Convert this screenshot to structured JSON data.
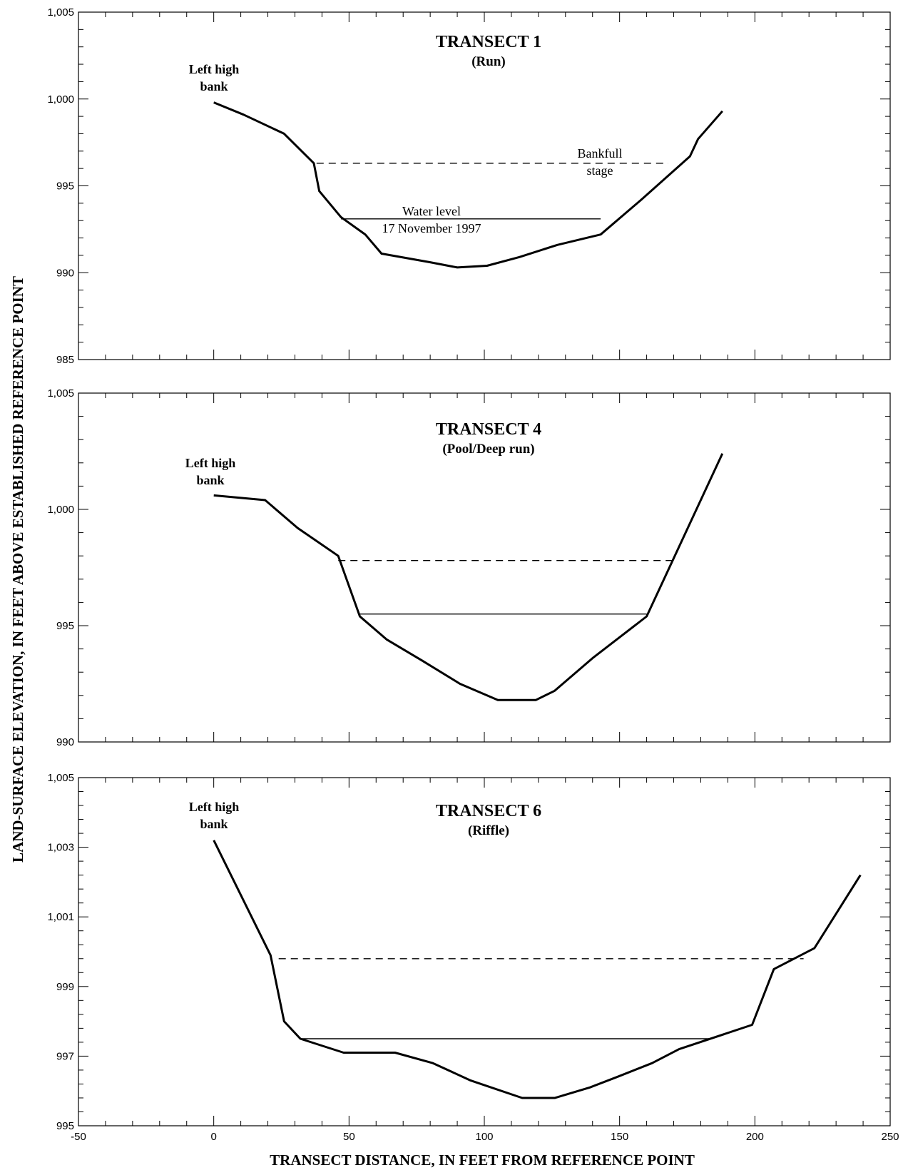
{
  "y_axis_label": "LAND-SURFACE ELEVATION, IN FEET ABOVE ESTABLISHED REFERENCE POINT",
  "x_axis_label": "TRANSECT DISTANCE, IN FEET FROM REFERENCE POINT",
  "chart_data": [
    {
      "type": "line",
      "title": "TRANSECT 1",
      "subtitle": "(Run)",
      "xlim": [
        -50,
        250
      ],
      "ylim": [
        985,
        1005
      ],
      "x_ticks": [
        -50,
        0,
        50,
        100,
        150,
        200,
        250
      ],
      "y_ticks": [
        985,
        990,
        995,
        1000,
        1005
      ],
      "y_tick_labels": [
        "985",
        "990",
        "995",
        "1,000",
        "1,005"
      ],
      "series": [
        {
          "role": "profile",
          "x": [
            0,
            11,
            26,
            37,
            39,
            47,
            56,
            62,
            80,
            90,
            101,
            113,
            127,
            143,
            158,
            176,
            179,
            188
          ],
          "y": [
            999.8,
            999.1,
            998.0,
            996.3,
            994.7,
            993.2,
            992.2,
            991.1,
            990.6,
            990.3,
            990.4,
            990.9,
            991.6,
            992.2,
            994.2,
            996.7,
            997.7,
            999.3
          ]
        },
        {
          "role": "bankfull",
          "x": [
            38,
            168
          ],
          "y": [
            996.3,
            996.3
          ]
        },
        {
          "role": "water-level",
          "x": [
            47,
            143
          ],
          "y": [
            993.1,
            993.1
          ]
        }
      ],
      "annotations": {
        "left_bank": [
          "Left high",
          "bank"
        ],
        "bankfull": [
          "Bankfull",
          "stage"
        ],
        "water_level": [
          "Water level",
          "17 November 1997"
        ]
      }
    },
    {
      "type": "line",
      "title": "TRANSECT 4",
      "subtitle": "(Pool/Deep run)",
      "xlim": [
        -50,
        250
      ],
      "ylim": [
        990,
        1005
      ],
      "x_ticks": [
        -50,
        0,
        50,
        100,
        150,
        200,
        250
      ],
      "y_ticks": [
        990,
        995,
        1000,
        1005
      ],
      "y_tick_labels": [
        "990",
        "995",
        "1,000",
        "1,005"
      ],
      "series": [
        {
          "role": "profile",
          "x": [
            0,
            19,
            31,
            46,
            54,
            64,
            77,
            91,
            105,
            119,
            126,
            140,
            160,
            188
          ],
          "y": [
            1000.6,
            1000.4,
            999.2,
            998.0,
            995.4,
            994.4,
            993.5,
            992.5,
            991.8,
            991.8,
            992.2,
            993.6,
            995.4,
            1002.4
          ]
        },
        {
          "role": "bankfull",
          "x": [
            46,
            170
          ],
          "y": [
            997.8,
            997.8
          ]
        },
        {
          "role": "water-level",
          "x": [
            54,
            160
          ],
          "y": [
            995.5,
            995.5
          ]
        }
      ],
      "annotations": {
        "left_bank": [
          "Left high",
          "bank"
        ]
      }
    },
    {
      "type": "line",
      "title": "TRANSECT 6",
      "subtitle": "(Riffle)",
      "xlim": [
        -50,
        250
      ],
      "ylim": [
        995,
        1005
      ],
      "x_ticks": [
        -50,
        0,
        50,
        100,
        150,
        200,
        250
      ],
      "x_tick_labels": [
        "-50",
        "0",
        "50",
        "100",
        "150",
        "200",
        "250"
      ],
      "y_ticks": [
        995,
        997,
        999,
        1001,
        1003,
        1005
      ],
      "y_tick_labels": [
        "995",
        "997",
        "999",
        "1,001",
        "1,003",
        "1,005"
      ],
      "series": [
        {
          "role": "profile",
          "x": [
            0,
            21,
            26,
            32,
            48,
            67,
            81,
            95,
            114,
            126,
            139,
            149,
            162,
            172,
            199,
            207,
            222,
            239
          ],
          "y": [
            1003.2,
            999.9,
            998.0,
            997.5,
            997.1,
            997.1,
            996.8,
            996.3,
            995.8,
            995.8,
            996.1,
            996.4,
            996.8,
            997.2,
            997.9,
            999.5,
            1000.1,
            1002.2
          ]
        },
        {
          "role": "bankfull",
          "x": [
            24,
            218
          ],
          "y": [
            999.8,
            999.8
          ]
        },
        {
          "role": "water-level",
          "x": [
            32,
            184
          ],
          "y": [
            997.5,
            997.5
          ]
        }
      ],
      "annotations": {
        "left_bank": [
          "Left high",
          "bank"
        ]
      }
    }
  ]
}
